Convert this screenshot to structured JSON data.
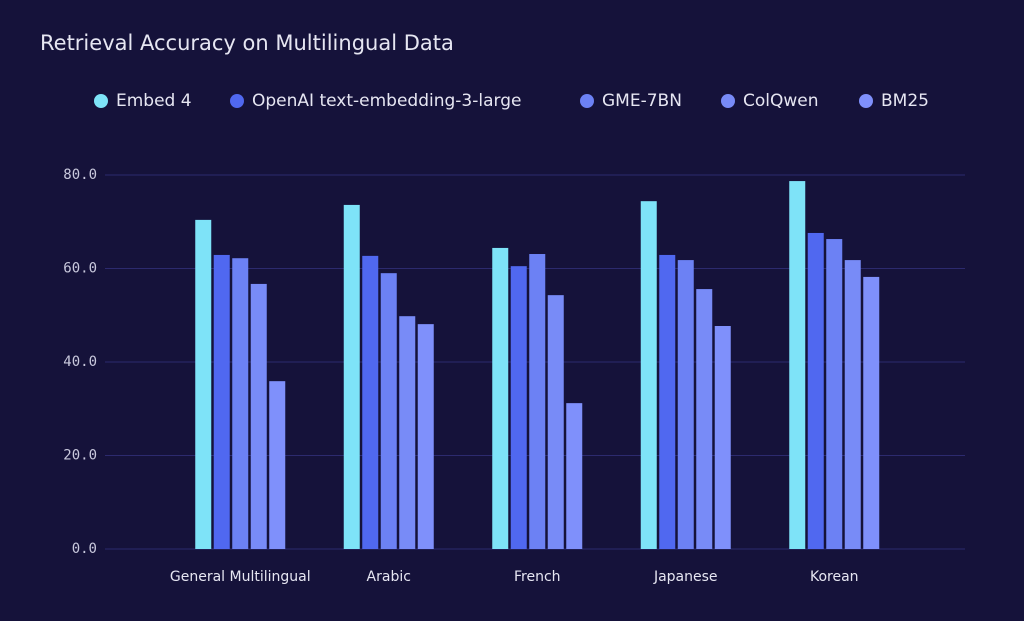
{
  "chart_data": {
    "type": "bar",
    "title": "Retrieval Accuracy on Multilingual Data",
    "categories": [
      "General Multilingual",
      "Arabic",
      "French",
      "Japanese",
      "Korean"
    ],
    "series": [
      {
        "name": "Embed 4",
        "color": "#7ee3f8",
        "values": [
          70.4,
          73.6,
          64.4,
          74.4,
          78.7
        ]
      },
      {
        "name": "OpenAI text-embedding-3-large",
        "color": "#5068f0",
        "values": [
          62.9,
          62.7,
          60.5,
          62.9,
          67.6
        ]
      },
      {
        "name": "GME-7BN",
        "color": "#6c81f4",
        "values": [
          62.2,
          59.0,
          63.1,
          61.8,
          66.3
        ]
      },
      {
        "name": "ColQwen",
        "color": "#788bf7",
        "values": [
          56.7,
          49.8,
          54.3,
          55.6,
          61.8
        ]
      },
      {
        "name": "BM25",
        "color": "#7f90fb",
        "values": [
          35.9,
          48.1,
          31.2,
          47.7,
          58.2
        ]
      }
    ],
    "ylim": [
      0,
      80
    ],
    "yticks": [
      {
        "value": 0,
        "label": "0.0"
      },
      {
        "value": 20,
        "label": "20.0"
      },
      {
        "value": 40,
        "label": "40.0"
      },
      {
        "value": 60,
        "label": "60.0"
      },
      {
        "value": 80,
        "label": "80.0"
      }
    ],
    "grid": true
  }
}
